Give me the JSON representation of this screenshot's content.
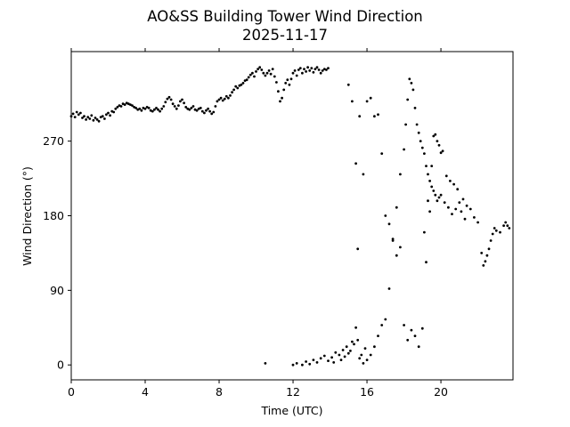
{
  "chart_data": {
    "type": "scatter",
    "title": "AO&SS Building Tower Wind Direction",
    "subtitle": "2025-11-17",
    "xlabel": "Time (UTC)",
    "ylabel": "Wind Direction (°)",
    "xlim": [
      0,
      23.9
    ],
    "ylim": [
      -18,
      378
    ],
    "xticks": [
      0,
      4,
      8,
      12,
      16,
      20
    ],
    "yticks": [
      0,
      90,
      180,
      270
    ],
    "grid": false,
    "marker_color": "#000000",
    "series": [
      {
        "points": [
          [
            0.0,
            300
          ],
          [
            0.1,
            303
          ],
          [
            0.2,
            299
          ],
          [
            0.3,
            305
          ],
          [
            0.4,
            302
          ],
          [
            0.5,
            304
          ],
          [
            0.6,
            298
          ],
          [
            0.7,
            300
          ],
          [
            0.8,
            296
          ],
          [
            0.9,
            299
          ],
          [
            1.0,
            297
          ],
          [
            1.1,
            301
          ],
          [
            1.2,
            295
          ],
          [
            1.3,
            298
          ],
          [
            1.4,
            296
          ],
          [
            1.5,
            294
          ],
          [
            1.6,
            299
          ],
          [
            1.7,
            300
          ],
          [
            1.8,
            297
          ],
          [
            1.9,
            302
          ],
          [
            2.0,
            304
          ],
          [
            2.1,
            301
          ],
          [
            2.2,
            306
          ],
          [
            2.3,
            305
          ],
          [
            2.4,
            309
          ],
          [
            2.5,
            311
          ],
          [
            2.6,
            313
          ],
          [
            2.7,
            312
          ],
          [
            2.8,
            315
          ],
          [
            2.9,
            314
          ],
          [
            3.0,
            316
          ],
          [
            3.1,
            315
          ],
          [
            3.2,
            314
          ],
          [
            3.3,
            313
          ],
          [
            3.4,
            311
          ],
          [
            3.5,
            310
          ],
          [
            3.6,
            308
          ],
          [
            3.7,
            309
          ],
          [
            3.8,
            307
          ],
          [
            3.9,
            310
          ],
          [
            4.0,
            309
          ],
          [
            4.1,
            311
          ],
          [
            4.2,
            310
          ],
          [
            4.3,
            307
          ],
          [
            4.4,
            306
          ],
          [
            4.5,
            308
          ],
          [
            4.6,
            310
          ],
          [
            4.7,
            308
          ],
          [
            4.8,
            306
          ],
          [
            4.9,
            309
          ],
          [
            5.0,
            312
          ],
          [
            5.1,
            317
          ],
          [
            5.2,
            321
          ],
          [
            5.3,
            323
          ],
          [
            5.4,
            320
          ],
          [
            5.5,
            315
          ],
          [
            5.6,
            312
          ],
          [
            5.7,
            309
          ],
          [
            5.8,
            313
          ],
          [
            5.9,
            318
          ],
          [
            6.0,
            320
          ],
          [
            6.1,
            316
          ],
          [
            6.2,
            311
          ],
          [
            6.3,
            309
          ],
          [
            6.4,
            308
          ],
          [
            6.5,
            310
          ],
          [
            6.6,
            312
          ],
          [
            6.7,
            308
          ],
          [
            6.8,
            307
          ],
          [
            6.9,
            309
          ],
          [
            7.0,
            310
          ],
          [
            7.1,
            306
          ],
          [
            7.2,
            304
          ],
          [
            7.3,
            307
          ],
          [
            7.4,
            309
          ],
          [
            7.5,
            306
          ],
          [
            7.6,
            303
          ],
          [
            7.7,
            305
          ],
          [
            7.8,
            312
          ],
          [
            7.9,
            318
          ],
          [
            8.0,
            320
          ],
          [
            8.1,
            322
          ],
          [
            8.2,
            319
          ],
          [
            8.3,
            321
          ],
          [
            8.4,
            324
          ],
          [
            8.5,
            322
          ],
          [
            8.6,
            325
          ],
          [
            8.7,
            329
          ],
          [
            8.8,
            332
          ],
          [
            8.9,
            336
          ],
          [
            9.0,
            334
          ],
          [
            9.1,
            337
          ],
          [
            9.2,
            338
          ],
          [
            9.3,
            340
          ],
          [
            9.4,
            343
          ],
          [
            9.5,
            344
          ],
          [
            9.6,
            347
          ],
          [
            9.7,
            350
          ],
          [
            9.8,
            352
          ],
          [
            9.9,
            348
          ],
          [
            10.0,
            354
          ],
          [
            10.1,
            357
          ],
          [
            10.2,
            359
          ],
          [
            10.3,
            356
          ],
          [
            10.4,
            352
          ],
          [
            10.5,
            349
          ],
          [
            10.6,
            352
          ],
          [
            10.7,
            355
          ],
          [
            10.8,
            351
          ],
          [
            10.9,
            357
          ],
          [
            11.0,
            348
          ],
          [
            11.1,
            341
          ],
          [
            11.2,
            330
          ],
          [
            11.3,
            318
          ],
          [
            11.4,
            322
          ],
          [
            11.5,
            332
          ],
          [
            11.6,
            340
          ],
          [
            11.7,
            344
          ],
          [
            11.8,
            338
          ],
          [
            11.9,
            345
          ],
          [
            12.0,
            352
          ],
          [
            12.1,
            355
          ],
          [
            12.2,
            349
          ],
          [
            12.3,
            356
          ],
          [
            12.4,
            358
          ],
          [
            12.5,
            352
          ],
          [
            12.6,
            357
          ],
          [
            12.7,
            354
          ],
          [
            12.8,
            359
          ],
          [
            12.9,
            355
          ],
          [
            13.0,
            358
          ],
          [
            13.1,
            353
          ],
          [
            13.2,
            357
          ],
          [
            13.3,
            359
          ],
          [
            13.4,
            356
          ],
          [
            13.5,
            352
          ],
          [
            13.6,
            355
          ],
          [
            13.7,
            357
          ],
          [
            13.8,
            356
          ],
          [
            13.9,
            358
          ],
          [
            12.0,
            0
          ],
          [
            12.2,
            2
          ],
          [
            12.5,
            0
          ],
          [
            12.7,
            4
          ],
          [
            12.9,
            1
          ],
          [
            13.1,
            6
          ],
          [
            13.3,
            3
          ],
          [
            13.5,
            8
          ],
          [
            13.7,
            11
          ],
          [
            13.9,
            5
          ],
          [
            14.1,
            9
          ],
          [
            14.3,
            15
          ],
          [
            14.5,
            12
          ],
          [
            14.7,
            18
          ],
          [
            14.9,
            22
          ],
          [
            15.1,
            17
          ],
          [
            15.3,
            25
          ],
          [
            15.5,
            30
          ],
          [
            15.7,
            12
          ],
          [
            15.9,
            20
          ],
          [
            14.2,
            3
          ],
          [
            14.6,
            6
          ],
          [
            14.8,
            10
          ],
          [
            15.0,
            14
          ],
          [
            15.2,
            28
          ],
          [
            15.4,
            45
          ],
          [
            15.6,
            8
          ],
          [
            15.8,
            2
          ],
          [
            16.0,
            6
          ],
          [
            16.2,
            12
          ],
          [
            16.4,
            22
          ],
          [
            16.6,
            35
          ],
          [
            16.8,
            48
          ],
          [
            17.0,
            55
          ],
          [
            17.2,
            92
          ],
          [
            17.4,
            150
          ],
          [
            17.6,
            190
          ],
          [
            17.8,
            230
          ],
          [
            18.0,
            260
          ],
          [
            18.1,
            290
          ],
          [
            18.2,
            320
          ],
          [
            18.3,
            345
          ],
          [
            18.4,
            340
          ],
          [
            18.5,
            332
          ],
          [
            18.6,
            310
          ],
          [
            18.7,
            290
          ],
          [
            18.8,
            280
          ],
          [
            18.9,
            270
          ],
          [
            19.0,
            262
          ],
          [
            19.1,
            255
          ],
          [
            19.2,
            240
          ],
          [
            19.3,
            230
          ],
          [
            19.4,
            222
          ],
          [
            19.5,
            215
          ],
          [
            19.6,
            210
          ],
          [
            19.7,
            205
          ],
          [
            19.8,
            198
          ],
          [
            19.9,
            202
          ],
          [
            20.0,
            205
          ],
          [
            20.2,
            196
          ],
          [
            20.4,
            190
          ],
          [
            20.6,
            182
          ],
          [
            20.8,
            188
          ],
          [
            21.0,
            196
          ],
          [
            21.2,
            200
          ],
          [
            21.4,
            192
          ],
          [
            21.6,
            188
          ],
          [
            21.8,
            178
          ],
          [
            22.0,
            172
          ],
          [
            22.2,
            135
          ],
          [
            22.3,
            120
          ],
          [
            22.4,
            125
          ],
          [
            22.5,
            132
          ],
          [
            22.6,
            140
          ],
          [
            22.7,
            150
          ],
          [
            22.8,
            158
          ],
          [
            22.9,
            165
          ],
          [
            23.0,
            162
          ],
          [
            23.2,
            160
          ],
          [
            23.4,
            168
          ],
          [
            23.5,
            172
          ],
          [
            23.6,
            168
          ],
          [
            23.7,
            165
          ],
          [
            10.5,
            2
          ],
          [
            15.0,
            338
          ],
          [
            15.2,
            318
          ],
          [
            15.4,
            243
          ],
          [
            15.5,
            140
          ],
          [
            15.6,
            300
          ],
          [
            15.8,
            230
          ],
          [
            16.0,
            318
          ],
          [
            16.2,
            322
          ],
          [
            16.4,
            300
          ],
          [
            16.6,
            302
          ],
          [
            16.8,
            255
          ],
          [
            17.0,
            180
          ],
          [
            17.2,
            170
          ],
          [
            17.4,
            152
          ],
          [
            17.6,
            132
          ],
          [
            17.8,
            142
          ],
          [
            18.0,
            48
          ],
          [
            18.2,
            30
          ],
          [
            18.4,
            42
          ],
          [
            18.6,
            35
          ],
          [
            18.8,
            22
          ],
          [
            19.0,
            44
          ],
          [
            19.1,
            160
          ],
          [
            19.2,
            124
          ],
          [
            19.3,
            198
          ],
          [
            19.4,
            185
          ],
          [
            19.5,
            240
          ],
          [
            19.6,
            276
          ],
          [
            19.7,
            278
          ],
          [
            19.8,
            270
          ],
          [
            19.9,
            265
          ],
          [
            20.0,
            256
          ],
          [
            20.1,
            258
          ],
          [
            20.3,
            228
          ],
          [
            20.5,
            222
          ],
          [
            20.7,
            218
          ],
          [
            20.9,
            212
          ],
          [
            21.1,
            185
          ],
          [
            21.3,
            176
          ]
        ]
      }
    ]
  }
}
